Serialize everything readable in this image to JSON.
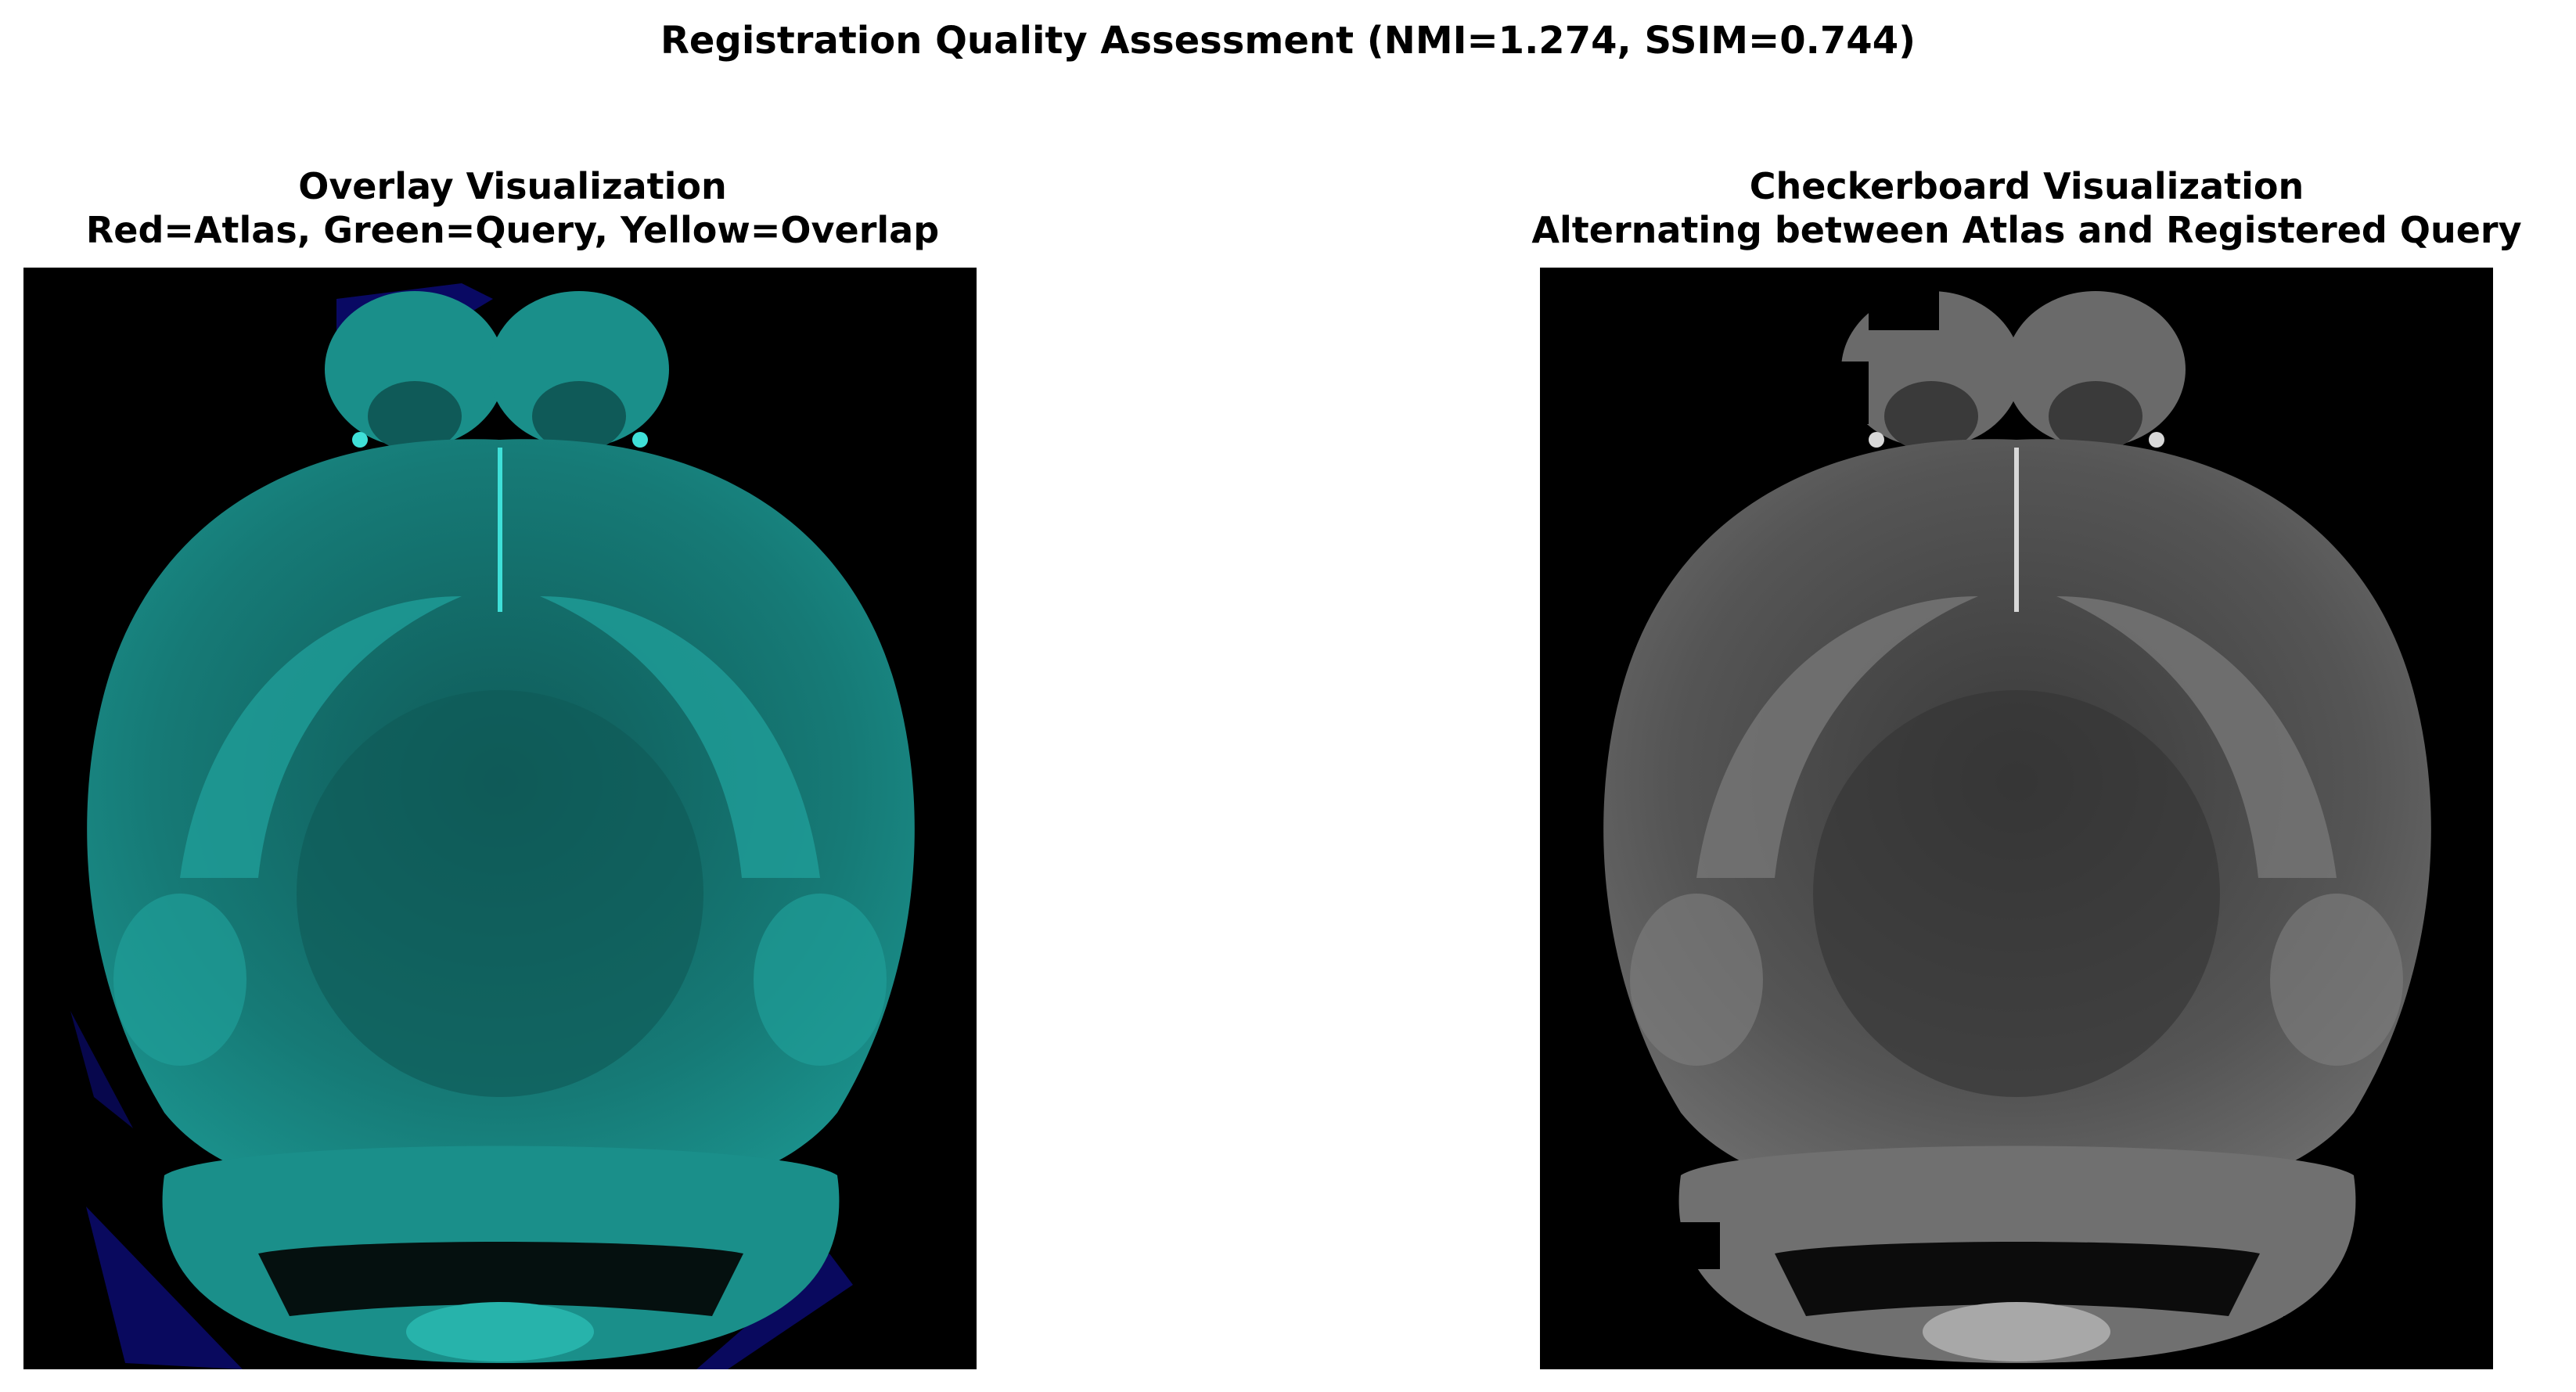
{
  "figure": {
    "title": "Registration Quality Assessment (NMI=1.274, SSIM=0.744)"
  },
  "panels": [
    {
      "title_line1": "Overlay Visualization",
      "title_line2": "Red=Atlas, Green=Query, Yellow=Overlap",
      "image": "cyan-tinted brain overlay with blue corner regions",
      "colors": {
        "tissue": "#1a8f8a",
        "bright": "#3fe0d8",
        "edge": "#0a0a6e"
      }
    },
    {
      "title_line1": "Checkerboard Visualization",
      "title_line2": "Alternating between Atlas and Registered Query",
      "image": "grayscale brain checkerboard",
      "colors": {
        "tissue": "#6a6a6a",
        "bright": "#d8d8d8"
      }
    }
  ]
}
